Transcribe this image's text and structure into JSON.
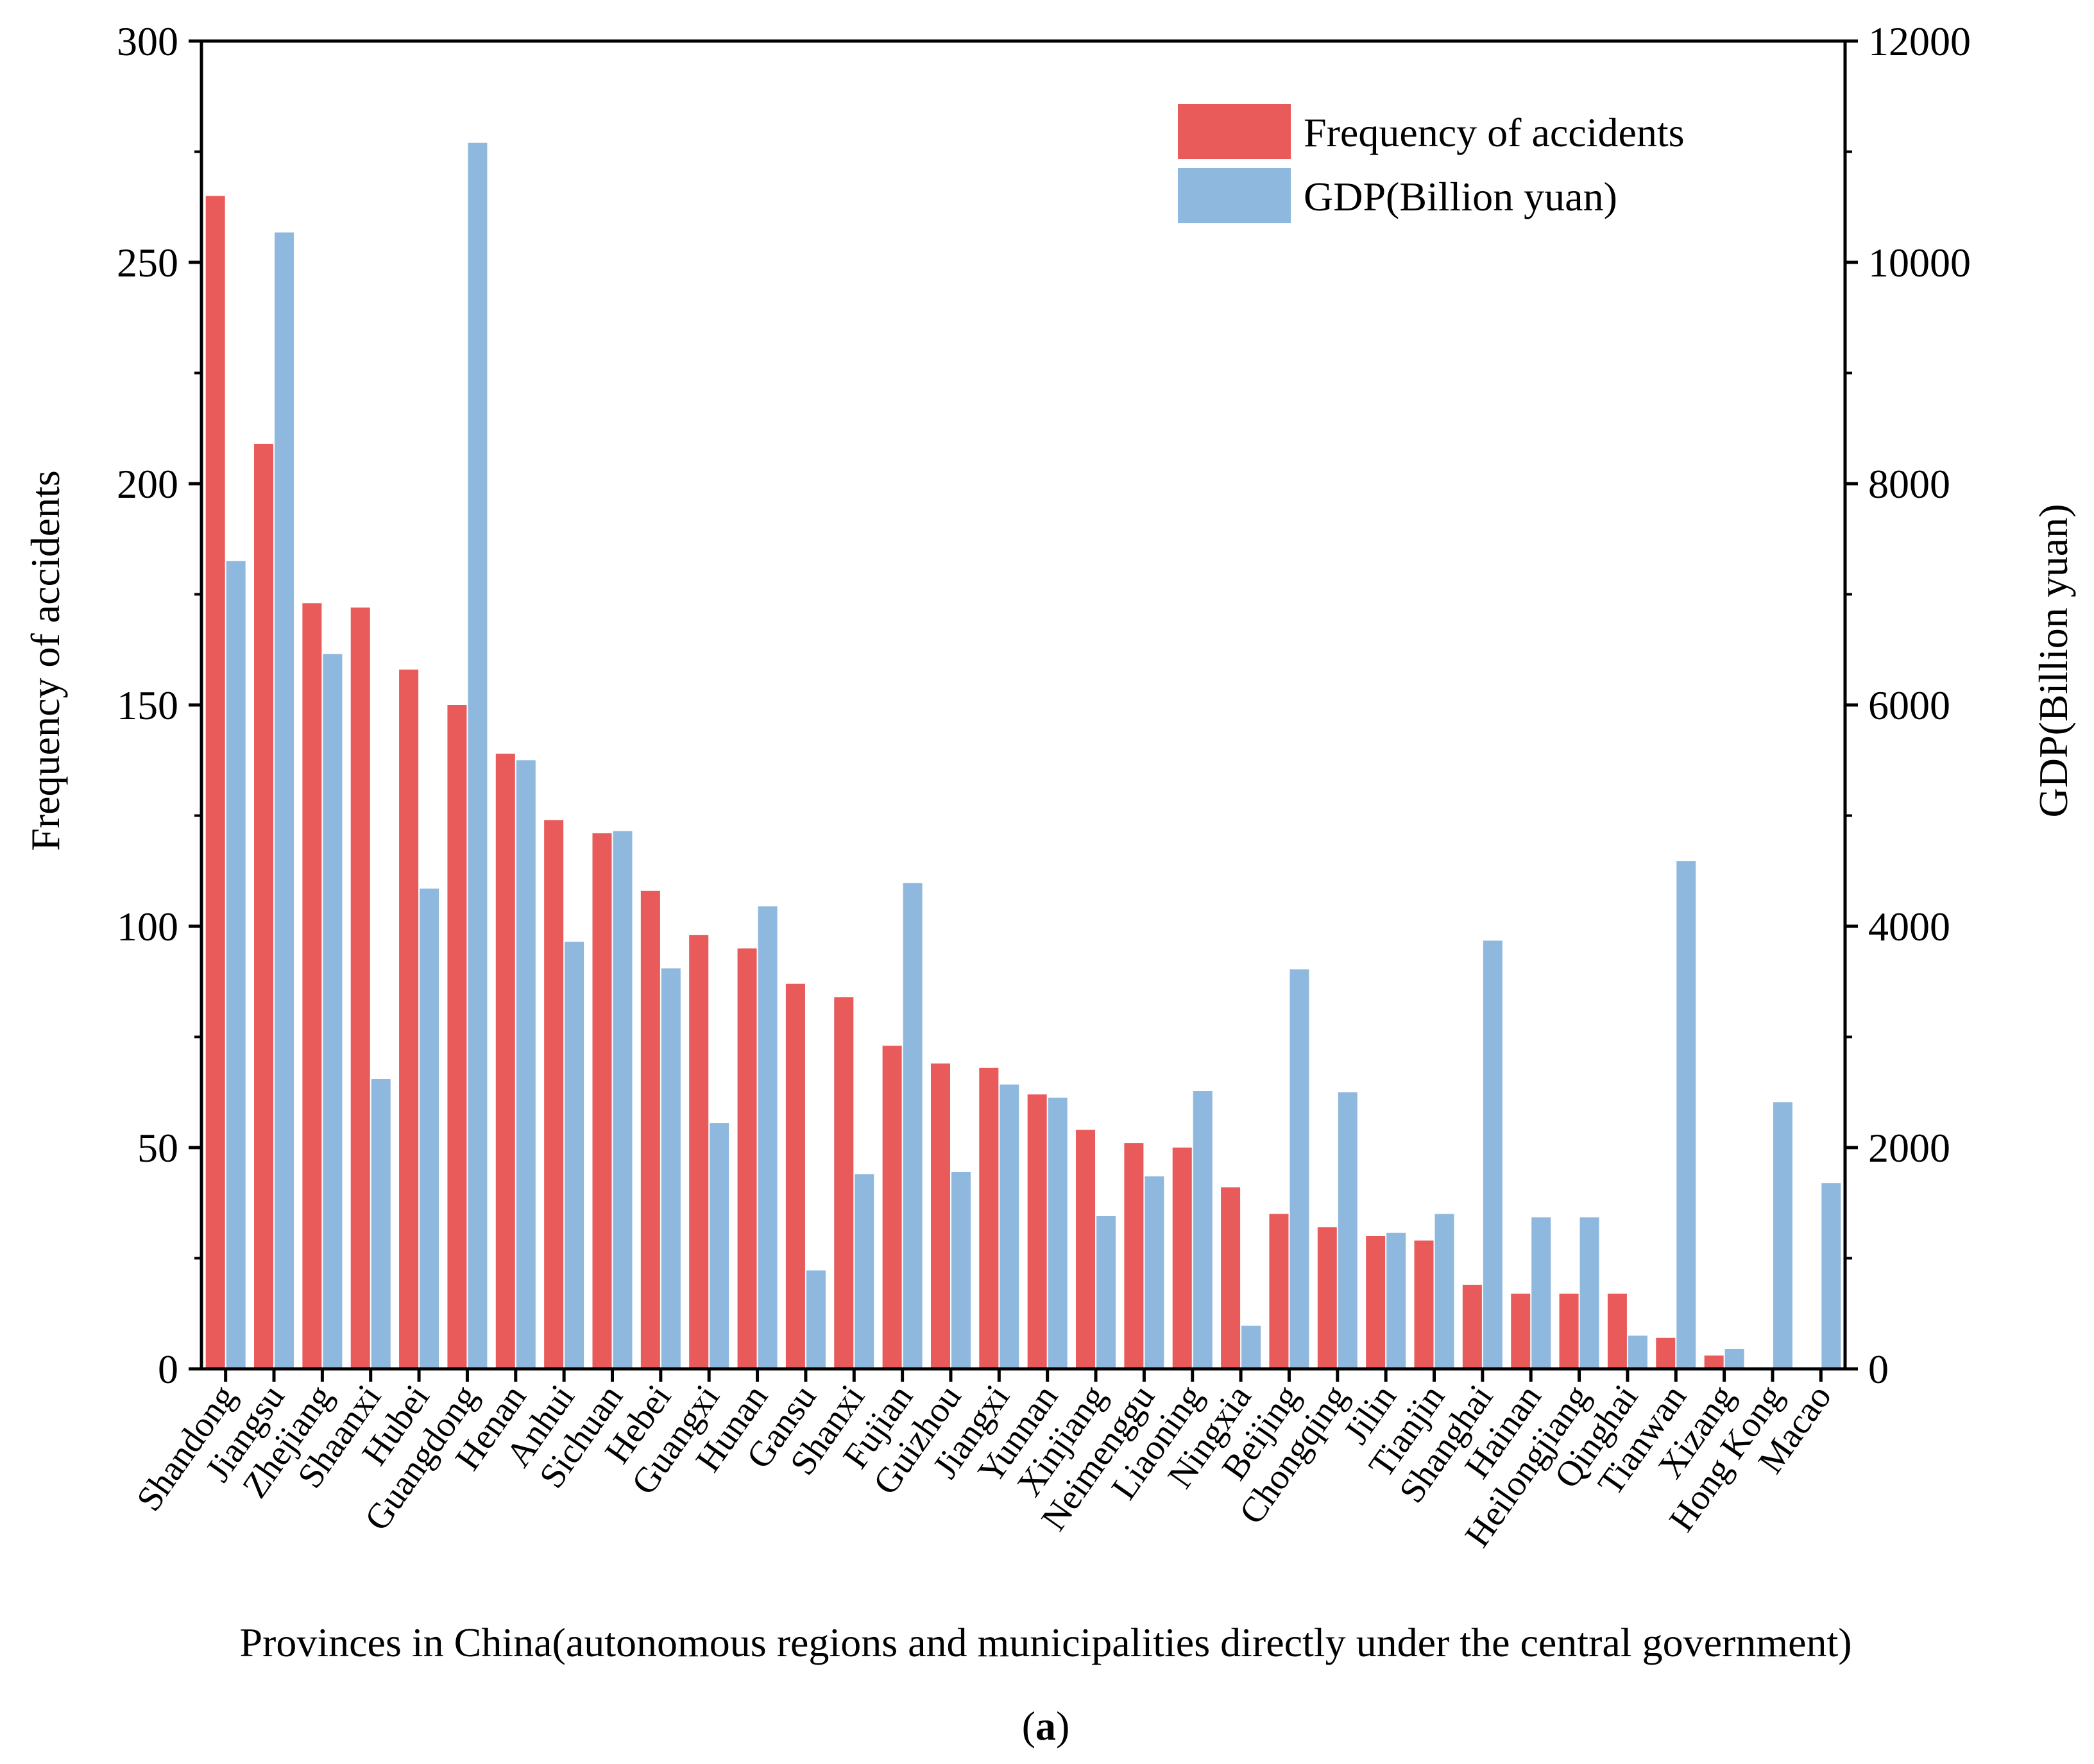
{
  "chart_data": {
    "type": "bar",
    "xlabel": "Provinces in China(autonomous regions and municipalities directly under the central government)",
    "ylabel_left": "Frequency of  accidents",
    "ylabel_right": "GDP(Billion yuan)",
    "caption_prefix": "(",
    "caption_letter": "a",
    "caption_suffix": ")",
    "ylim_left": [
      0,
      300
    ],
    "ylim_right": [
      0,
      12000
    ],
    "yticks_left": [
      0,
      50,
      100,
      150,
      200,
      250,
      300
    ],
    "yticks_right": [
      0,
      2000,
      4000,
      6000,
      8000,
      10000,
      12000
    ],
    "legend_position": "top-right",
    "categories": [
      "Shandong",
      "Jiangsu",
      "Zhejiang",
      "Shaanxi",
      "Hubei",
      "Guangdong",
      "Henan",
      "Anhui",
      "Sichuan",
      "Hebei",
      "Guangxi",
      "Hunan",
      "Gansu",
      "Shanxi",
      "Fujian",
      "Guizhou",
      "Jiangxi",
      "Yunnan",
      "Xinjiang",
      "Neimenggu",
      "Liaoning",
      "Ningxia",
      "Beijing",
      "Chongqing",
      "Jilin",
      "Tianjin",
      "Shanghai",
      "Hainan",
      "Heilongjiang",
      "Qinghai",
      "Tianwan",
      "Xizang",
      "Hong Kong",
      "Macao"
    ],
    "series": [
      {
        "name": "Frequency of accidents",
        "axis": "left",
        "color": "#E95A5A",
        "values": [
          265,
          209,
          173,
          172,
          158,
          150,
          139,
          124,
          121,
          108,
          98,
          95,
          87,
          84,
          73,
          69,
          68,
          62,
          54,
          51,
          50,
          41,
          35,
          32,
          30,
          29,
          19,
          17,
          17,
          17,
          7,
          3,
          0,
          0
        ]
      },
      {
        "name": "GDP(Billion yuan)",
        "axis": "right",
        "color": "#8FB8DE",
        "values": [
          7300,
          10270,
          6460,
          2620,
          4340,
          11080,
          5500,
          3860,
          4860,
          3620,
          2220,
          4180,
          890,
          1760,
          4390,
          1780,
          2570,
          2450,
          1380,
          1740,
          2510,
          390,
          3610,
          2500,
          1230,
          1400,
          3870,
          1370,
          1370,
          300,
          4590,
          180,
          2410,
          1680
        ]
      }
    ]
  }
}
